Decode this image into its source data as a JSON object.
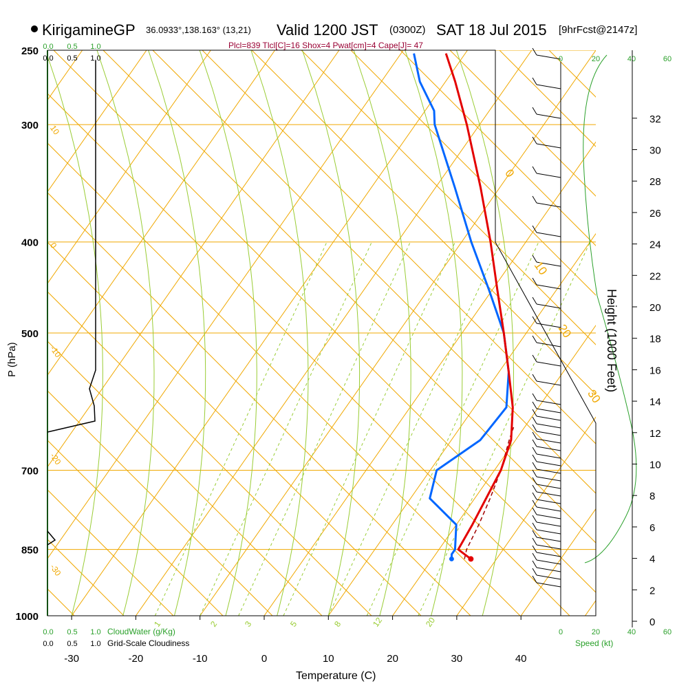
{
  "header": {
    "station": "KirigamineGP",
    "coords": "36.0933°,138.163° (13,21)",
    "valid_prefix": "Valid 1200 JST",
    "valid_utc": "(0300Z)",
    "valid_date": "SAT 18 Jul 2015",
    "forecast": "[9hrFcst@2147z]",
    "indices": "Plcl=839 Tlcl[C]=16 Shox=4 Pwat[cm]=4 Cape[J]= 47"
  },
  "colors": {
    "temperature": "#e30000",
    "dewpoint": "#0066ff",
    "virtual_temp": "#a00000",
    "isotherm": "#f0a800",
    "adiabat_green": "#99cc33",
    "mixing_ratio": "#99cc33",
    "cloud_axis": "#2aa02a",
    "indices": "#990033"
  },
  "chart_data": {
    "type": "skew-t",
    "title": "KirigamineGP Valid 1200 JST (0300Z) SAT 18 Jul 2015",
    "xlabel": "Temperature (C)",
    "ylabel": "P (hPa)",
    "y2label": "Height (1000 Feet)",
    "x_ticks": [
      -30,
      -20,
      -10,
      0,
      10,
      20,
      30,
      40
    ],
    "pressure_ticks": [
      1000,
      850,
      700,
      500,
      400,
      300,
      250
    ],
    "height_ticks": [
      0,
      2,
      4,
      6,
      8,
      10,
      12,
      14,
      16,
      18,
      20,
      22,
      24,
      26,
      28,
      30,
      32
    ],
    "isotherm_labels": [
      {
        "text": "10",
        "p": 300,
        "side": "left"
      },
      {
        "text": "0",
        "p": 400,
        "side": "left"
      },
      {
        "text": "-10",
        "p": 515,
        "side": "left"
      },
      {
        "text": "-20",
        "p": 670,
        "side": "left"
      },
      {
        "text": "-30",
        "p": 880,
        "side": "left"
      },
      {
        "text": "0",
        "p": 335,
        "side": "right"
      },
      {
        "text": "10",
        "p": 420,
        "side": "right"
      },
      {
        "text": "20",
        "p": 490,
        "side": "right"
      },
      {
        "text": "30",
        "p": 575,
        "side": "right"
      }
    ],
    "mixing_ratio_labels": [
      "1",
      "2",
      "3",
      "5",
      "8",
      "12",
      "20"
    ],
    "temperature": [
      {
        "p": 870,
        "t": 26.0
      },
      {
        "p": 860,
        "t": 24.5
      },
      {
        "p": 850,
        "t": 23.0
      },
      {
        "p": 800,
        "t": 22.5
      },
      {
        "p": 700,
        "t": 21.0
      },
      {
        "p": 650,
        "t": 19.3
      },
      {
        "p": 600,
        "t": 16.0
      },
      {
        "p": 550,
        "t": 11.5
      },
      {
        "p": 500,
        "t": 6.5
      },
      {
        "p": 450,
        "t": 0.8
      },
      {
        "p": 400,
        "t": -5.5
      },
      {
        "p": 350,
        "t": -13.0
      },
      {
        "p": 300,
        "t": -22.0
      },
      {
        "p": 270,
        "t": -28.5
      },
      {
        "p": 252,
        "t": -33.0
      }
    ],
    "virtual_temperature": [
      {
        "p": 870,
        "t": 25.0
      },
      {
        "p": 850,
        "t": 24.3
      },
      {
        "p": 800,
        "t": 23.5
      },
      {
        "p": 750,
        "t": 22.4
      },
      {
        "p": 700,
        "t": 21.0
      },
      {
        "p": 650,
        "t": 19.0
      },
      {
        "p": 630,
        "t": 18.3
      }
    ],
    "dewpoint": [
      {
        "p": 870,
        "t": 23.0
      },
      {
        "p": 860,
        "t": 22.5
      },
      {
        "p": 850,
        "t": 22.5
      },
      {
        "p": 800,
        "t": 20.0
      },
      {
        "p": 750,
        "t": 13.0
      },
      {
        "p": 700,
        "t": 11.0
      },
      {
        "p": 650,
        "t": 14.5
      },
      {
        "p": 600,
        "t": 15.0
      },
      {
        "p": 550,
        "t": 11.5
      },
      {
        "p": 500,
        "t": 6.5
      },
      {
        "p": 450,
        "t": -0.5
      },
      {
        "p": 400,
        "t": -8.5
      },
      {
        "p": 350,
        "t": -17.0
      },
      {
        "p": 300,
        "t": -27.0
      },
      {
        "p": 290,
        "t": -28.6
      },
      {
        "p": 270,
        "t": -34.0
      },
      {
        "p": 252,
        "t": -38.0
      }
    ],
    "cloud_water": {
      "label": "CloudWater (g/Kg)",
      "ticks": [
        "0.0",
        "0.5",
        "1.0"
      ]
    },
    "cloudiness": {
      "label": "Grid-Scale Cloudiness",
      "ticks": [
        "0.0",
        "0.5",
        "1.0"
      ]
    },
    "wind_speed": {
      "label": "Speed (kt)",
      "ticks": [
        "0",
        "20",
        "40",
        "60"
      ]
    }
  }
}
